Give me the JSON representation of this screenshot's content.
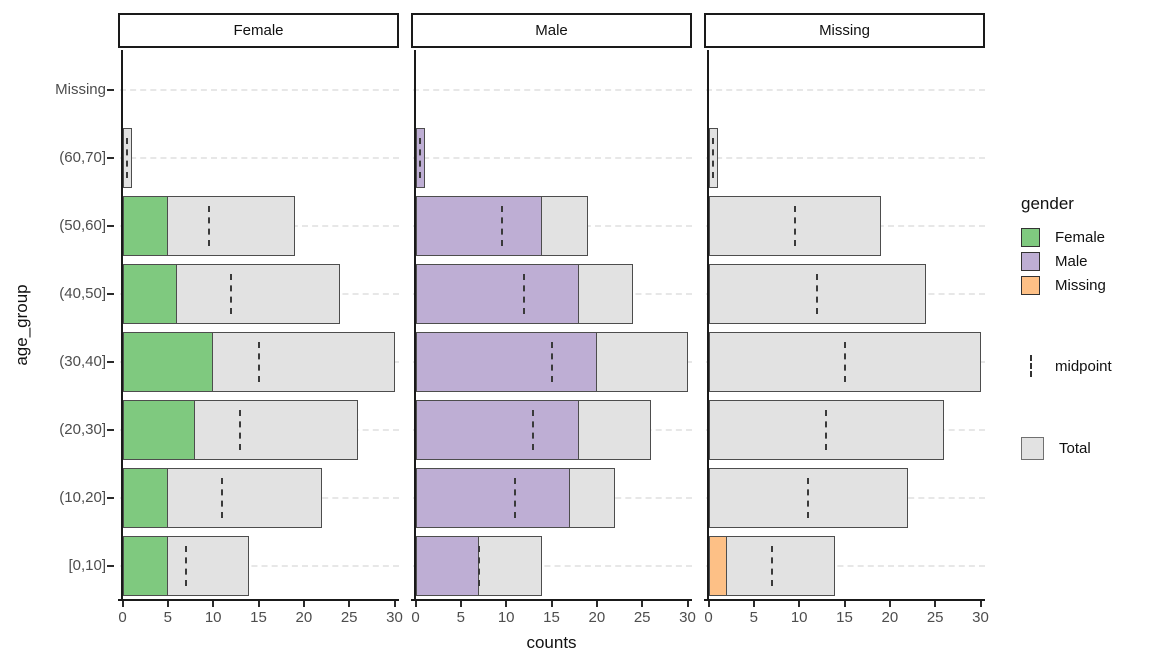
{
  "axes": {
    "x_title": "counts",
    "y_title": "age_group",
    "x_tick_labels": [
      "0",
      "5",
      "10",
      "15",
      "20",
      "25",
      "30"
    ],
    "y_labels": [
      "Missing",
      "(60,70]",
      "(50,60]",
      "(40,50]",
      "(30,40]",
      "(20,30]",
      "(10,20]",
      "[0,10]"
    ]
  },
  "legend": {
    "title": "gender",
    "gender_items": [
      {
        "label": "Female",
        "color": "#7FC97F"
      },
      {
        "label": "Male",
        "color": "#BEAED4"
      },
      {
        "label": "Missing",
        "color": "#FDC086"
      }
    ],
    "midpoint_label": "midpoint",
    "total_label": "Total"
  },
  "colors": {
    "female": "#7FC97F",
    "male": "#BEAED4",
    "missing_gender": "#FDC086",
    "total_fill": "#E2E2E2",
    "bar_border": "#4D4D4D",
    "gridline": "#E7E7E7",
    "axis_line": "#1A1A1A",
    "tick_text": "#4D4D4D",
    "strip_bg": "#FFFFFF",
    "strip_border": "#1A1A1A"
  },
  "chart_data": {
    "type": "bar",
    "orientation": "horizontal",
    "title": "",
    "xlabel": "counts",
    "ylabel": "age_group",
    "xlim": [
      0,
      30
    ],
    "xticks": [
      0,
      5,
      10,
      15,
      20,
      25,
      30
    ],
    "grid": "horizontal-dashed",
    "legend_position": "right",
    "facets": [
      "Female",
      "Male",
      "Missing"
    ],
    "categories": [
      "Missing",
      "(60,70]",
      "(50,60]",
      "(40,50]",
      "(30,40]",
      "(20,30]",
      "(10,20]",
      "[0,10]"
    ],
    "totals": [
      0,
      1,
      19,
      24,
      30,
      26,
      22,
      14
    ],
    "midpoints": [
      null,
      0.5,
      9.5,
      12,
      15,
      13,
      11,
      7
    ],
    "series": [
      {
        "name": "Female",
        "color": "#7FC97F",
        "values": [
          0,
          0,
          5,
          6,
          10,
          8,
          5,
          5
        ]
      },
      {
        "name": "Male",
        "color": "#BEAED4",
        "values": [
          0,
          1,
          14,
          18,
          20,
          18,
          17,
          7
        ]
      },
      {
        "name": "Missing",
        "color": "#FDC086",
        "values": [
          0,
          0,
          0,
          0,
          0,
          0,
          0,
          2
        ]
      }
    ]
  }
}
